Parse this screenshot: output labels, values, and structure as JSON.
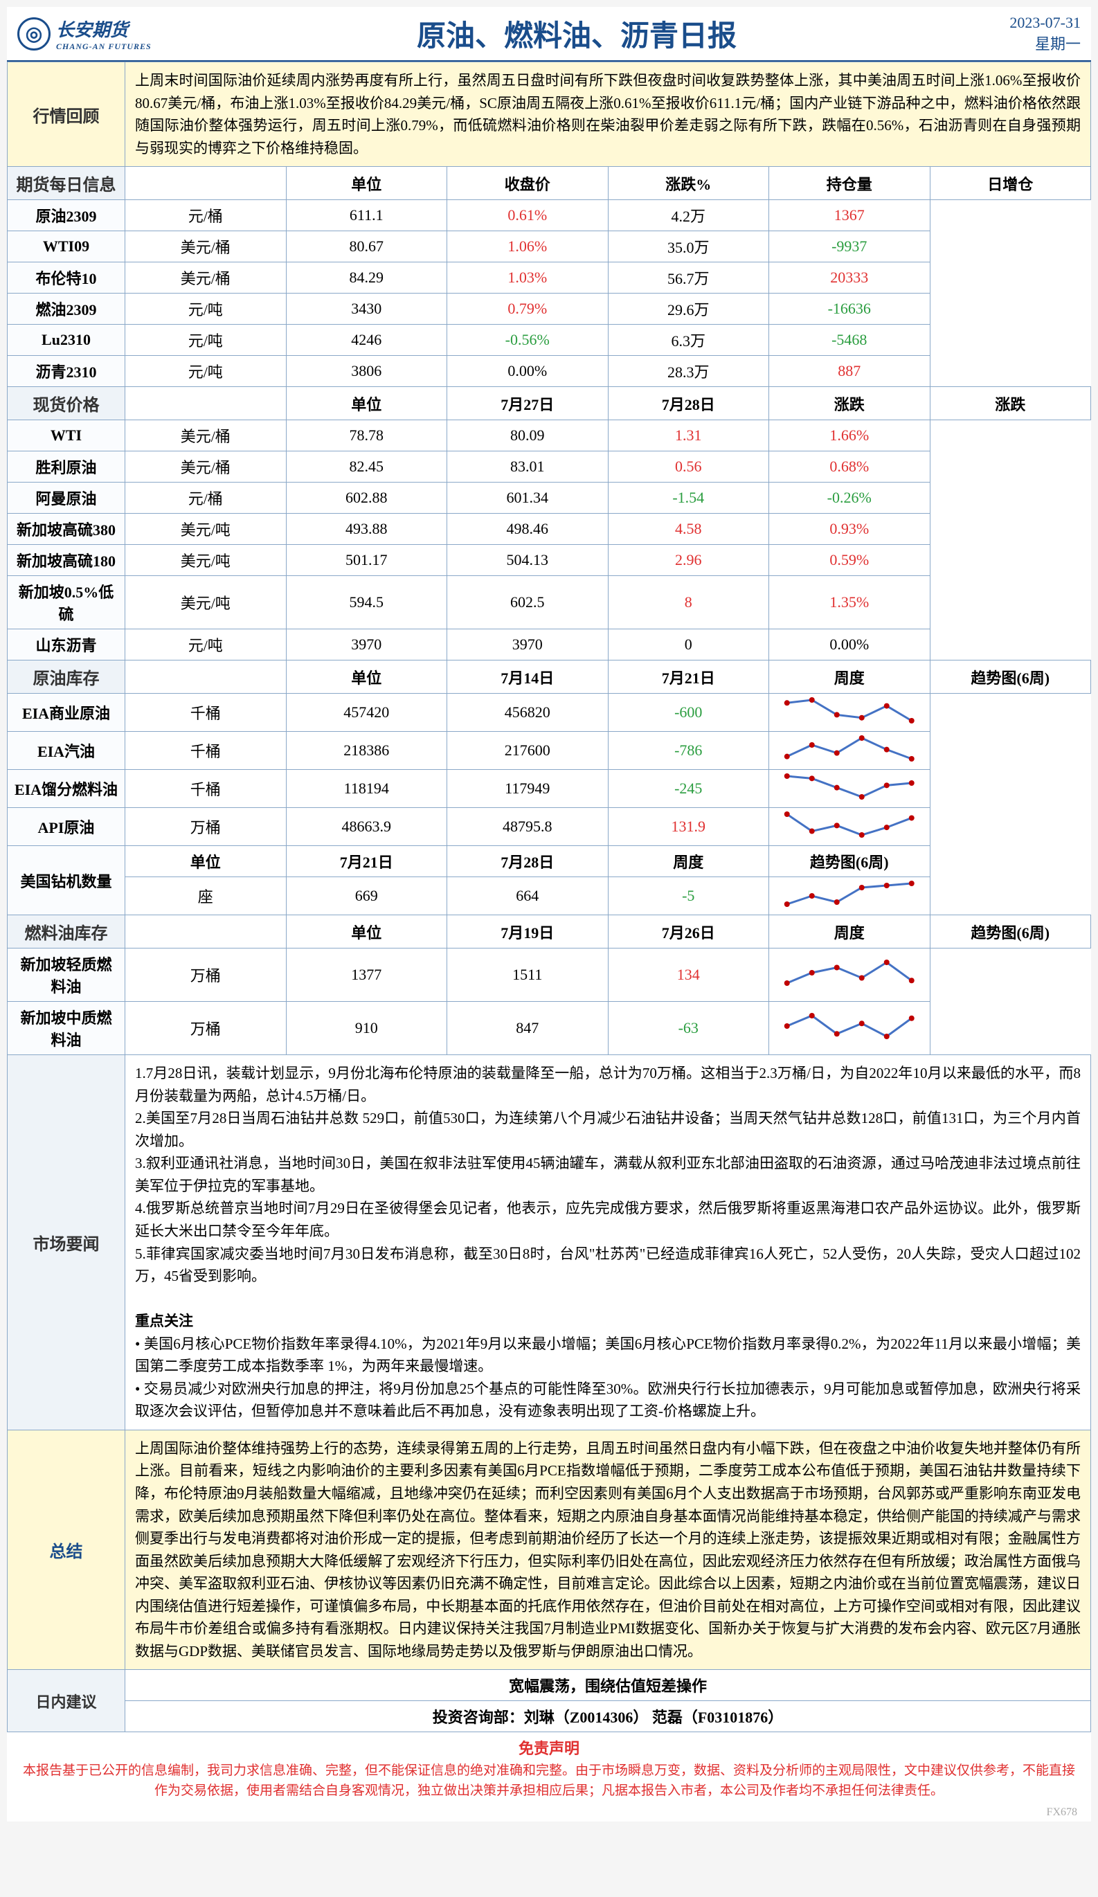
{
  "header": {
    "logo_cn": "长安期货",
    "logo_en": "CHANG-AN FUTURES",
    "title": "原油、燃料油、沥青日报",
    "date": "2023-07-31",
    "weekday": "星期一"
  },
  "market_review": {
    "label": "行情回顾",
    "text": "上周末时间国际油价延续周内涨势再度有所上行，虽然周五日盘时间有所下跌但夜盘时间收复跌势整体上涨，其中美油周五时间上涨1.06%至报收价80.67美元/桶，布油上涨1.03%至报收价84.29美元/桶，SC原油周五隔夜上涨0.61%至报收价611.1元/桶；国内产业链下游品种之中，燃料油价格依然跟随国际油价整体强势运行，周五时间上涨0.79%，而低硫燃料油价格则在柴油裂甲价差走弱之际有所下跌，跌幅在0.56%，石油沥青则在自身强预期与弱现实的博弈之下价格维持稳固。"
  },
  "futures_daily": {
    "label": "期货每日信息",
    "headers": [
      "单位",
      "收盘价",
      "涨跌%",
      "持仓量",
      "日增仓"
    ],
    "rows": [
      {
        "name": "原油2309",
        "unit": "元/桶",
        "close": "611.1",
        "change": "0.61%",
        "change_color": "red",
        "oi": "4.2万",
        "oi_change": "1367",
        "oi_color": "red"
      },
      {
        "name": "WTI09",
        "unit": "美元/桶",
        "close": "80.67",
        "change": "1.06%",
        "change_color": "red",
        "oi": "35.0万",
        "oi_change": "-9937",
        "oi_color": "green"
      },
      {
        "name": "布伦特10",
        "unit": "美元/桶",
        "close": "84.29",
        "change": "1.03%",
        "change_color": "red",
        "oi": "56.7万",
        "oi_change": "20333",
        "oi_color": "red"
      },
      {
        "name": "燃油2309",
        "unit": "元/吨",
        "close": "3430",
        "change": "0.79%",
        "change_color": "red",
        "oi": "29.6万",
        "oi_change": "-16636",
        "oi_color": "green"
      },
      {
        "name": "Lu2310",
        "unit": "元/吨",
        "close": "4246",
        "change": "-0.56%",
        "change_color": "green",
        "oi": "6.3万",
        "oi_change": "-5468",
        "oi_color": "green"
      },
      {
        "name": "沥青2310",
        "unit": "元/吨",
        "close": "3806",
        "change": "0.00%",
        "change_color": "",
        "oi": "28.3万",
        "oi_change": "887",
        "oi_color": "red"
      }
    ]
  },
  "spot_prices": {
    "label": "现货价格",
    "headers": [
      "单位",
      "7月27日",
      "7月28日",
      "涨跌",
      "涨跌"
    ],
    "rows": [
      {
        "name": "WTI",
        "unit": "美元/桶",
        "d1": "78.78",
        "d2": "80.09",
        "chg": "1.31",
        "chg_color": "red",
        "pct": "1.66%",
        "pct_color": "red"
      },
      {
        "name": "胜利原油",
        "unit": "美元/桶",
        "d1": "82.45",
        "d2": "83.01",
        "chg": "0.56",
        "chg_color": "red",
        "pct": "0.68%",
        "pct_color": "red"
      },
      {
        "name": "阿曼原油",
        "unit": "元/桶",
        "d1": "602.88",
        "d2": "601.34",
        "chg": "-1.54",
        "chg_color": "green",
        "pct": "-0.26%",
        "pct_color": "green"
      },
      {
        "name": "新加坡高硫380",
        "unit": "美元/吨",
        "d1": "493.88",
        "d2": "498.46",
        "chg": "4.58",
        "chg_color": "red",
        "pct": "0.93%",
        "pct_color": "red"
      },
      {
        "name": "新加坡高硫180",
        "unit": "美元/吨",
        "d1": "501.17",
        "d2": "504.13",
        "chg": "2.96",
        "chg_color": "red",
        "pct": "0.59%",
        "pct_color": "red"
      },
      {
        "name": "新加坡0.5%低硫",
        "unit": "美元/吨",
        "d1": "594.5",
        "d2": "602.5",
        "chg": "8",
        "chg_color": "red",
        "pct": "1.35%",
        "pct_color": "red"
      },
      {
        "name": "山东沥青",
        "unit": "元/吨",
        "d1": "3970",
        "d2": "3970",
        "chg": "0",
        "chg_color": "",
        "pct": "0.00%",
        "pct_color": ""
      }
    ]
  },
  "crude_inventory": {
    "label": "原油库存",
    "headers": [
      "单位",
      "7月14日",
      "7月21日",
      "周度",
      "趋势图(6周)"
    ],
    "rows": [
      {
        "name": "EIA商业原油",
        "unit": "千桶",
        "d1": "457420",
        "d2": "456820",
        "chg": "-600",
        "chg_color": "green",
        "spark": [
          20,
          22,
          12,
          10,
          18,
          8
        ]
      },
      {
        "name": "EIA汽油",
        "unit": "千桶",
        "d1": "218386",
        "d2": "217600",
        "chg": "-786",
        "chg_color": "green",
        "spark": [
          12,
          22,
          15,
          28,
          18,
          10
        ]
      },
      {
        "name": "EIA馏分燃料油",
        "unit": "千桶",
        "d1": "118194",
        "d2": "117949",
        "chg": "-245",
        "chg_color": "green",
        "spark": [
          28,
          26,
          18,
          10,
          20,
          22
        ]
      },
      {
        "name": "API原油",
        "unit": "万桶",
        "d1": "48663.9",
        "d2": "48795.8",
        "chg": "131.9",
        "chg_color": "red",
        "spark": [
          30,
          12,
          18,
          8,
          16,
          26
        ]
      }
    ],
    "rig_label": "美国钻机数量",
    "rig_headers": [
      "单位",
      "7月21日",
      "7月28日",
      "周度",
      "趋势图(6周)"
    ],
    "rig_row": {
      "unit": "座",
      "d1": "669",
      "d2": "664",
      "chg": "-5",
      "chg_color": "green",
      "spark": [
        10,
        18,
        12,
        26,
        28,
        30
      ]
    }
  },
  "fuel_inventory": {
    "label": "燃料油库存",
    "headers": [
      "单位",
      "7月19日",
      "7月26日",
      "周度",
      "趋势图(6周)"
    ],
    "rows": [
      {
        "name": "新加坡轻质燃料油",
        "unit": "万桶",
        "d1": "1377",
        "d2": "1511",
        "chg": "134",
        "chg_color": "red",
        "spark": [
          10,
          18,
          22,
          14,
          26,
          12
        ]
      },
      {
        "name": "新加坡中质燃料油",
        "unit": "万桶",
        "d1": "910",
        "d2": "847",
        "chg": "-63",
        "chg_color": "green",
        "spark": [
          20,
          28,
          14,
          22,
          12,
          26
        ]
      }
    ]
  },
  "market_news": {
    "label": "市场要闻",
    "items": [
      "1.7月28日讯，装载计划显示，9月份北海布伦特原油的装载量降至一船，总计为70万桶。这相当于2.3万桶/日，为自2022年10月以来最低的水平，而8月份装载量为两船，总计4.5万桶/日。",
      "2.美国至7月28日当周石油钻井总数 529口，前值530口，为连续第八个月减少石油钻井设备；当周天然气钻井总数128口，前值131口，为三个月内首次增加。",
      "3.叙利亚通讯社消息，当地时间30日，美国在叙非法驻军使用45辆油罐车，满载从叙利亚东北部油田盗取的石油资源，通过马哈茂迪非法过境点前往美军位于伊拉克的军事基地。",
      "4.俄罗斯总统普京当地时间7月29日在圣彼得堡会见记者，他表示，应先完成俄方要求，然后俄罗斯将重返黑海港口农产品外运协议。此外，俄罗斯延长大米出口禁令至今年年底。",
      "5.菲律宾国家减灾委当地时间7月30日发布消息称，截至30日8时，台风\"杜苏芮\"已经造成菲律宾16人死亡，52人受伤，20人失踪，受灾人口超过102万，45省受到影响。"
    ],
    "focus_title": "重点关注",
    "focus_items": [
      "• 美国6月核心PCE物价指数年率录得4.10%，为2021年9月以来最小增幅；美国6月核心PCE物价指数月率录得0.2%，为2022年11月以来最小增幅；美国第二季度劳工成本指数季率 1%，为两年来最慢增速。",
      "• 交易员减少对欧洲央行加息的押注，将9月份加息25个基点的可能性降至30%。欧洲央行行长拉加德表示，9月可能加息或暂停加息，欧洲央行将采取逐次会议评估，但暂停加息并不意味着此后不再加息，没有迹象表明出现了工资-价格螺旋上升。"
    ]
  },
  "summary": {
    "label": "总结",
    "text": "上周国际油价整体维持强势上行的态势，连续录得第五周的上行走势，且周五时间虽然日盘内有小幅下跌，但在夜盘之中油价收复失地并整体仍有所上涨。目前看来，短线之内影响油价的主要利多因素有美国6月PCE指数增幅低于预期，二季度劳工成本公布值低于预期，美国石油钻井数量持续下降，布伦特原油9月装船数量大幅缩减，且地缘冲突仍在延续；而利空因素则有美国6月个人支出数据高于市场预期，台风郭苏或严重影响东南亚发电需求，欧美后续加息预期虽然下降但利率仍处在高位。整体看来，短期之内原油自身基本面情况尚能维持基本稳定，供给侧产能国的持续减产与需求侧夏季出行与发电消费都将对油价形成一定的提振，但考虑到前期油价经历了长达一个月的连续上涨走势，该提振效果近期或相对有限；金融属性方面虽然欧美后续加息预期大大降低缓解了宏观经济下行压力，但实际利率仍旧处在高位，因此宏观经济压力依然存在但有所放缓；政治属性方面俄乌冲突、美军盗取叙利亚石油、伊核协议等因素仍旧充满不确定性，目前难言定论。因此综合以上因素，短期之内油价或在当前位置宽幅震荡，建议日内围绕估值进行短差操作，可谨慎偏多布局，中长期基本面的托底作用依然存在，但油价目前处在相对高位，上方可操作空间或相对有限，因此建议布局牛市价差组合或偏多持有看涨期权。日内建议保持关注我国7月制造业PMI数据变化、国新办关于恢复与扩大消费的发布会内容、欧元区7月通胀数据与GDP数据、美联储官员发言、国际地缘局势走势以及俄罗斯与伊朗原油出口情况。"
  },
  "daily_advice": {
    "label": "日内建议",
    "strategy": "宽幅震荡，围绕估值短差操作",
    "analysts": "投资咨询部：刘琳（Z0014306） 范磊（F03101876）"
  },
  "disclaimer": {
    "title": "免责声明",
    "text": "本报告基于已公开的信息编制，我司力求信息准确、完整，但不能保证信息的绝对准确和完整。由于市场瞬息万变，数据、资料及分析师的主观局限性，文中建议仅供参考，不能直接作为交易依据，使用者需结合自身客观情况，独立做出决策并承担相应后果；凡据本报告入市者，本公司及作者均不承担任何法律责任。"
  },
  "watermark": "FX678"
}
